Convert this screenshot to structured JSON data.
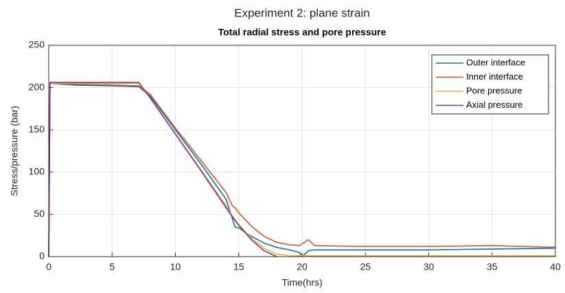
{
  "chart_data": {
    "type": "line",
    "title": "Experiment 2: plane strain",
    "subtitle": "Total radial stress and pore pressure",
    "xlabel": "Time(hrs)",
    "ylabel": "Stress/pressure (bar)",
    "x": [
      0,
      0.1,
      2,
      5,
      7.1,
      8,
      10,
      12,
      14,
      14.5,
      14.7,
      15,
      16,
      17,
      18,
      19,
      19.8,
      20,
      20.5,
      21,
      25,
      30,
      35,
      40
    ],
    "series": [
      {
        "name": "Outer interface",
        "color": "#0072BD",
        "values": [
          0,
          205,
          203,
          202,
          201,
          190,
          150,
          110,
          68,
          45,
          35,
          34,
          24,
          16,
          11,
          8,
          5,
          0,
          7,
          8,
          8,
          8,
          9,
          10
        ]
      },
      {
        "name": "Inner interface",
        "color": "#D95319",
        "values": [
          0,
          206,
          204,
          203,
          202,
          192,
          152,
          114,
          76,
          60,
          58,
          52,
          36,
          24,
          17,
          14,
          13,
          15,
          20,
          13,
          12,
          12,
          13,
          11
        ]
      },
      {
        "name": "Pore pressure",
        "color": "#EDB120",
        "values": [
          0,
          205,
          205,
          205,
          205,
          188,
          145,
          103,
          60,
          48,
          44,
          38,
          22,
          10,
          3,
          1,
          1,
          1,
          1,
          1,
          1,
          1,
          1,
          1
        ]
      },
      {
        "name": "Axial pressure",
        "color": "#7E2F8E",
        "values": [
          0,
          206,
          206,
          206,
          206,
          188,
          145,
          102,
          58,
          47,
          43,
          37,
          20,
          7,
          0,
          null,
          null,
          null,
          null,
          null,
          null,
          null,
          null,
          null
        ]
      }
    ],
    "xlim": [
      0,
      40
    ],
    "xticks": [
      0,
      5,
      10,
      15,
      20,
      25,
      30,
      35,
      40
    ],
    "ylim": [
      0,
      250
    ],
    "yticks": [
      0,
      50,
      100,
      150,
      200,
      250
    ],
    "grid": true,
    "legend": "upper right"
  }
}
